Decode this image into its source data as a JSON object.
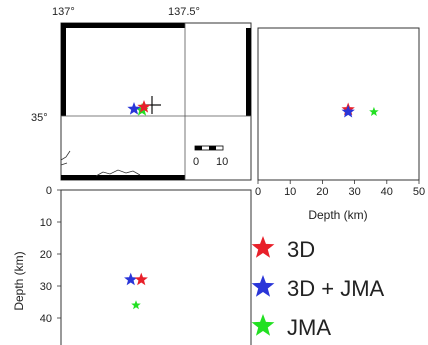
{
  "chart_data": [
    {
      "type": "map",
      "x_ticks": [
        "137°",
        "137.5°"
      ],
      "y_ticks": [
        "35°"
      ],
      "scale_bar": [
        "0",
        "10"
      ],
      "points": [
        {
          "series": "JMA",
          "x": 2,
          "y": -1
        },
        {
          "series": "3D + JMA",
          "x": -6,
          "y": 0
        },
        {
          "series": "3D",
          "x": 4,
          "y": 2
        }
      ],
      "station": {
        "x": 12,
        "y": 4
      }
    },
    {
      "type": "scatter",
      "xlabel": "Depth (km)",
      "xlim": [
        0,
        50
      ],
      "x_ticks": [
        "0",
        "10",
        "20",
        "30",
        "40",
        "50"
      ],
      "points": [
        {
          "series": "3D",
          "x": 28,
          "y": 0.5
        },
        {
          "series": "3D + JMA",
          "x": 28,
          "y": -0.3
        },
        {
          "series": "JMA",
          "x": 36,
          "y": -0.3
        }
      ]
    },
    {
      "type": "scatter",
      "ylabel": "Depth (km)",
      "ylim": [
        0,
        50
      ],
      "y_ticks": [
        "0",
        "10",
        "20",
        "30",
        "40"
      ],
      "points": [
        {
          "series": "3D + JMA",
          "x": -1.5,
          "y": 28
        },
        {
          "series": "3D",
          "x": 1.5,
          "y": 28
        },
        {
          "series": "JMA",
          "x": 0,
          "y": 36
        }
      ]
    }
  ],
  "legend": [
    {
      "label": "3D",
      "color": "#e8202a"
    },
    {
      "label": "3D + JMA",
      "color": "#2a35d8"
    },
    {
      "label": "JMA",
      "color": "#22e022"
    }
  ],
  "colors": {
    "3D": "#e8202a",
    "3D + JMA": "#2a35d8",
    "JMA": "#22e022"
  }
}
